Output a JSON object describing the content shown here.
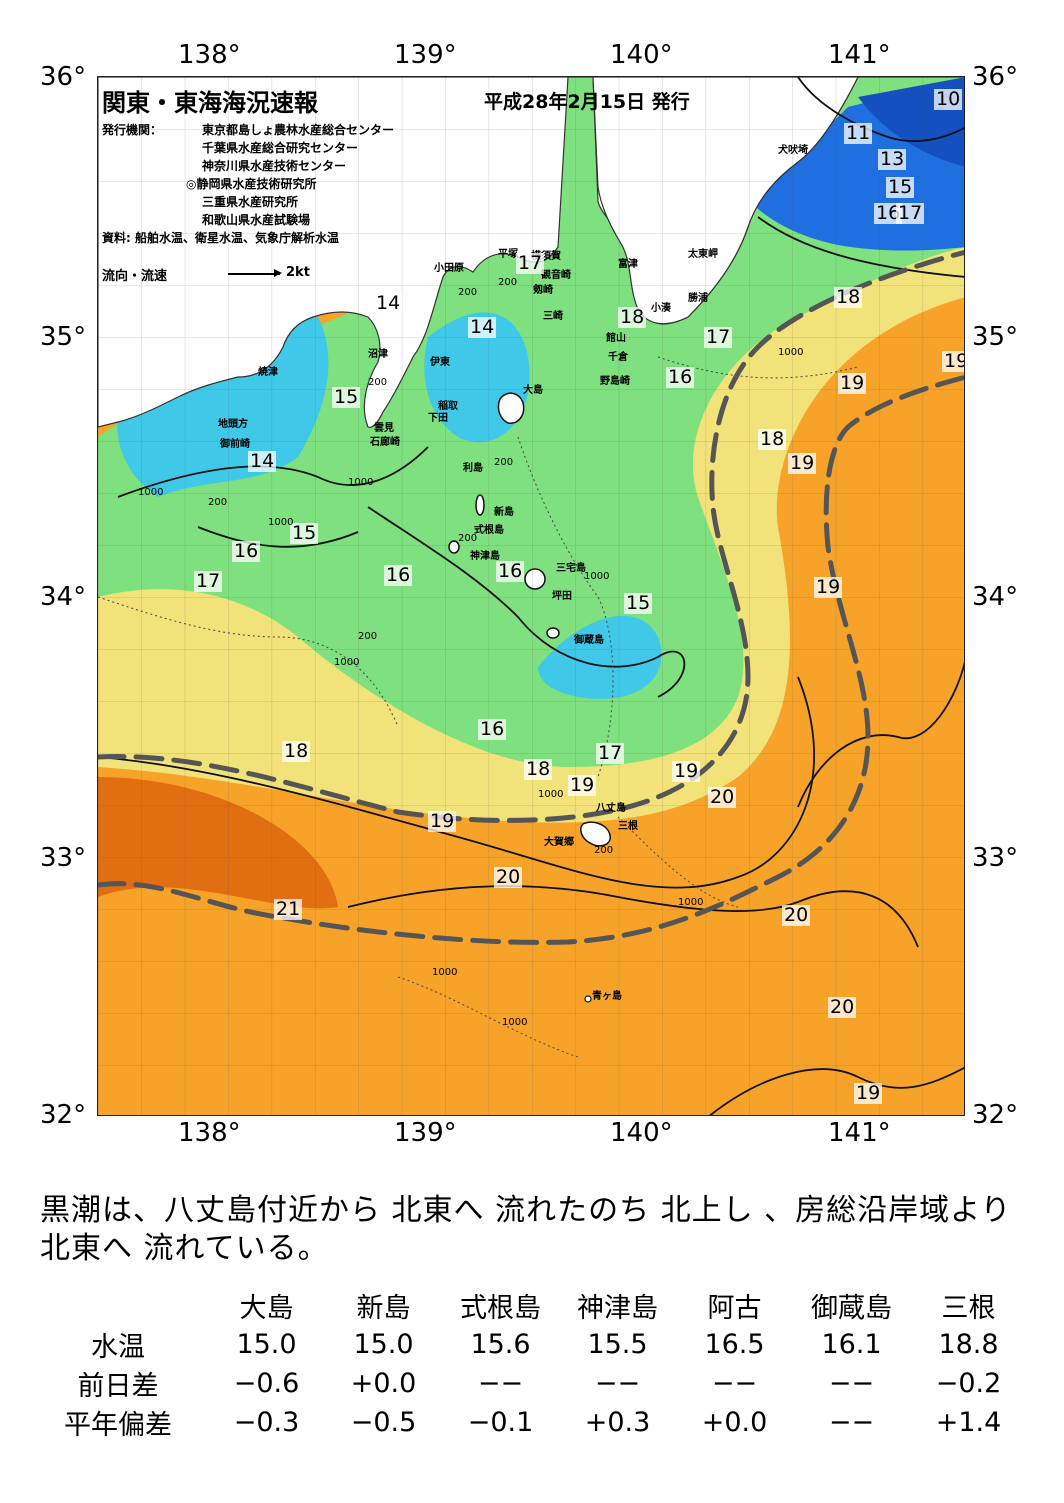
{
  "map": {
    "title": "関東・東海海況速報",
    "issue_date": "平成28年2月15日 発行",
    "issuer_label": "発行機関：",
    "issuers": [
      "東京都島しょ農林水産総合センター",
      "千葉県水産総合研究センター",
      "神奈川県水産技術センター",
      "◎静岡県水産技術研究所",
      "三重県水産研究所",
      "和歌山県水産試験場"
    ],
    "source": "資料: 船舶水温、衛星水温、気象庁解析水温",
    "legend_label": "流向・流速",
    "legend_scale": "2kt",
    "lon_labels": [
      "138°",
      "139°",
      "140°",
      "141°"
    ],
    "lat_labels": [
      "36°",
      "35°",
      "34°",
      "33°",
      "32°"
    ],
    "lon_range": [
      137.5,
      141.5
    ],
    "lat_range": [
      32,
      36
    ],
    "current_name": "黒潮",
    "colors": {
      "cold": "#1f6fe0",
      "cool": "#40c8e8",
      "mid": "#7ee07e",
      "warm": "#f2e27a",
      "hot": "#f7a32a",
      "hottest": "#e26e12",
      "land": "#ffffff",
      "kuroshio": "#555555"
    },
    "places": [
      "犬吠埼",
      "太東岬",
      "勝浦",
      "小湊",
      "富津",
      "横須賀",
      "観音崎",
      "剱崎",
      "三崎",
      "平塚",
      "小田原",
      "館山",
      "千倉",
      "野島崎",
      "沼津",
      "伊東",
      "焼津",
      "稲取",
      "下田",
      "雲見",
      "石廊崎",
      "地頭方",
      "御前崎",
      "大島",
      "利島",
      "新島",
      "式根島",
      "神津島",
      "三宅島",
      "坪田",
      "御蔵島",
      "八丈島",
      "三根",
      "大賀郷",
      "青ヶ島"
    ],
    "isotherms": [
      "10",
      "11",
      "13",
      "15",
      "16",
      "17",
      "18",
      "18",
      "17",
      "16",
      "17",
      "14",
      "14",
      "15",
      "15",
      "14",
      "16",
      "17",
      "16",
      "16",
      "15",
      "16",
      "17",
      "18",
      "19",
      "19",
      "20",
      "18",
      "19",
      "19",
      "19",
      "20",
      "21",
      "20",
      "20",
      "19",
      "19",
      "18",
      "19"
    ],
    "depth_labels": [
      "1000",
      "200",
      "200",
      "200",
      "1000",
      "1000",
      "200",
      "1000",
      "200",
      "200",
      "200",
      "1000",
      "1000",
      "1000",
      "200",
      "1000",
      "1000",
      "1000"
    ]
  },
  "description": "黒潮は、八丈島付近から 北東へ 流れたのち 北上し 、房総沿岸域より 北東へ 流れている。",
  "table": {
    "columns": [
      "大島",
      "新島",
      "式根島",
      "神津島",
      "阿古",
      "御蔵島",
      "三根"
    ],
    "rows": [
      {
        "label": "水温",
        "values": [
          "15.0",
          "15.0",
          "15.6",
          "15.5",
          "16.5",
          "16.1",
          "18.8"
        ]
      },
      {
        "label": "前日差",
        "values": [
          "−0.6",
          "+0.0",
          "−−",
          "−−",
          "−−",
          "−−",
          "−0.2"
        ]
      },
      {
        "label": "平年偏差",
        "values": [
          "−0.3",
          "−0.5",
          "−0.1",
          "+0.3",
          "+0.0",
          "−−",
          "+1.4"
        ]
      }
    ]
  }
}
